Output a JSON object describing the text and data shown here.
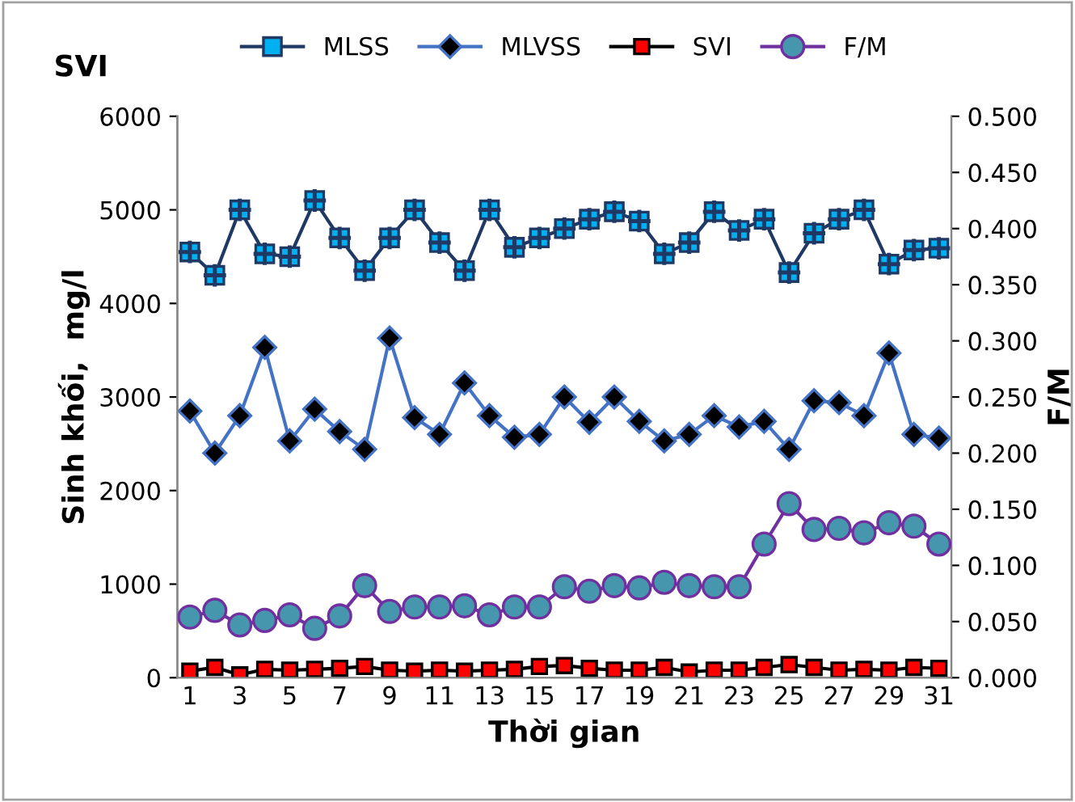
{
  "chart_data": {
    "type": "line",
    "title": "SVI",
    "xlabel": "Thời gian",
    "ylabel": "Sinh khối,  mg/l",
    "y2label": "F/M",
    "categories": [
      "1",
      null,
      "3",
      null,
      "5",
      null,
      "7",
      null,
      "9",
      null,
      "11",
      null,
      "13",
      null,
      "15",
      null,
      "17",
      null,
      "19",
      null,
      "21",
      null,
      "23",
      null,
      "25",
      null,
      "27",
      null,
      "29",
      null,
      "31"
    ],
    "ylim": [
      0,
      6000
    ],
    "yticks": [
      0,
      1000,
      2000,
      3000,
      4000,
      5000,
      6000
    ],
    "y2lim": [
      0,
      0.5
    ],
    "y2ticks": [
      {
        "value": 0,
        "label": "0.000"
      },
      {
        "value": 0.05,
        "label": "0.050"
      },
      {
        "value": 0.1,
        "label": "0.100"
      },
      {
        "value": 0.15,
        "label": "0.150"
      },
      {
        "value": 0.2,
        "label": "0.200"
      },
      {
        "value": 0.25,
        "label": "0.250"
      },
      {
        "value": 0.3,
        "label": "0.300"
      },
      {
        "value": 0.35,
        "label": "0.350"
      },
      {
        "value": 0.4,
        "label": "0.400"
      },
      {
        "value": 0.45,
        "label": "0.450"
      },
      {
        "value": 0.5,
        "label": "0.500"
      }
    ],
    "grid": false,
    "legend": "top",
    "series": [
      {
        "name": "MLSS",
        "color": "#00b0f0",
        "marker": "square",
        "values": [
          4550,
          4300,
          5000,
          4530,
          4500,
          5100,
          4700,
          4350,
          4700,
          5000,
          4650,
          4350,
          5000,
          4600,
          4700,
          4800,
          4900,
          4980,
          4880,
          4530,
          4650,
          4980,
          4780,
          4900,
          4330,
          4750,
          4900,
          5000,
          4420,
          4570,
          4590
        ]
      },
      {
        "name": "MLVSS",
        "color": "#000000",
        "marker": "diamond",
        "values": [
          2850,
          2400,
          2800,
          3530,
          2530,
          2870,
          2630,
          2440,
          3630,
          2780,
          2600,
          3150,
          2800,
          2570,
          2600,
          3000,
          2730,
          3000,
          2740,
          2530,
          2600,
          2800,
          2680,
          2740,
          2440,
          2960,
          2940,
          2800,
          3470,
          2600,
          2560
        ]
      },
      {
        "name": "SVI",
        "color": "#ff0000",
        "marker": "square",
        "values": [
          70,
          110,
          30,
          90,
          80,
          90,
          100,
          120,
          80,
          70,
          80,
          70,
          80,
          90,
          120,
          130,
          100,
          80,
          80,
          110,
          60,
          80,
          80,
          110,
          140,
          110,
          80,
          90,
          80,
          110,
          100
        ]
      },
      {
        "name": "F/M",
        "color": "#4697ad",
        "marker": "circle",
        "axis": "y2",
        "values": [
          0.054,
          0.06,
          0.047,
          0.051,
          0.056,
          0.044,
          0.055,
          0.082,
          0.059,
          0.063,
          0.063,
          0.064,
          0.056,
          0.063,
          0.063,
          0.081,
          0.077,
          0.082,
          0.08,
          0.085,
          0.082,
          0.081,
          0.081,
          0.119,
          0.155,
          0.132,
          0.133,
          0.129,
          0.138,
          0.135,
          0.119
        ]
      }
    ]
  }
}
